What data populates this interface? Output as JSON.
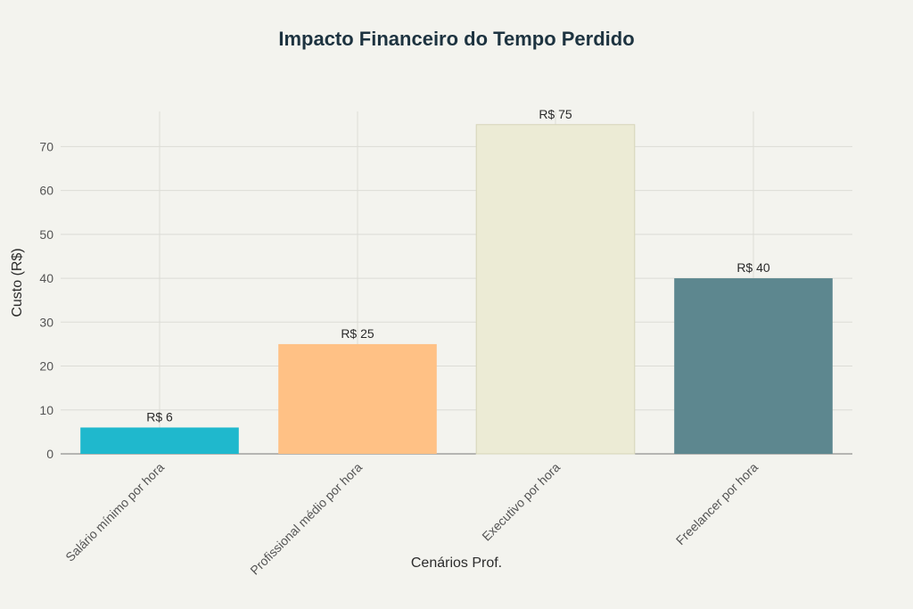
{
  "chart_data": {
    "type": "bar",
    "title": "Impacto Financeiro do Tempo Perdido",
    "xlabel": "Cenários Prof.",
    "ylabel": "Custo (R$)",
    "categories": [
      "Salário mínimo por hora",
      "Profissional médio por hora",
      "Executivo por hora",
      "Freelancer por hora"
    ],
    "values": [
      6,
      25,
      75,
      40
    ],
    "data_labels": [
      "R$ 6",
      "R$ 25",
      "R$ 75",
      "R$ 40"
    ],
    "colors": [
      "#1fb8cd",
      "#ffc185",
      "#eceBd5",
      "#5d878f"
    ],
    "ylim": [
      0,
      78
    ],
    "yticks": [
      0,
      10,
      20,
      30,
      40,
      50,
      60,
      70
    ],
    "grid": true,
    "legend": "none"
  }
}
